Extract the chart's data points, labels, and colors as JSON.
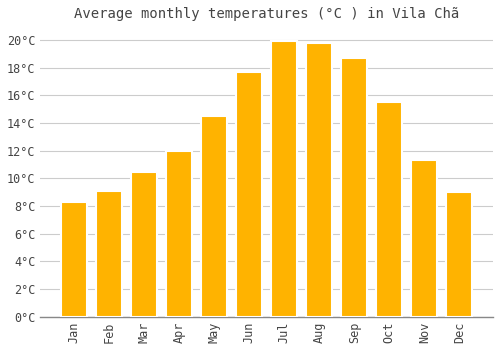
{
  "title": "Average monthly temperatures (°C ) in Vila Chã",
  "months": [
    "Jan",
    "Feb",
    "Mar",
    "Apr",
    "May",
    "Jun",
    "Jul",
    "Aug",
    "Sep",
    "Oct",
    "Nov",
    "Dec"
  ],
  "values": [
    8.3,
    9.1,
    10.5,
    12.0,
    14.5,
    17.7,
    19.9,
    19.8,
    18.7,
    15.5,
    11.3,
    9.0
  ],
  "bar_color_top": "#FFB300",
  "bar_color_bottom": "#FFA000",
  "bar_edge_color": "#FFFFFF",
  "background_color": "#FFFFFF",
  "grid_color": "#CCCCCC",
  "text_color": "#444444",
  "ylim": [
    0,
    21
  ],
  "yticks": [
    0,
    2,
    4,
    6,
    8,
    10,
    12,
    14,
    16,
    18,
    20
  ],
  "title_fontsize": 10,
  "tick_fontsize": 8.5,
  "font_family": "monospace"
}
